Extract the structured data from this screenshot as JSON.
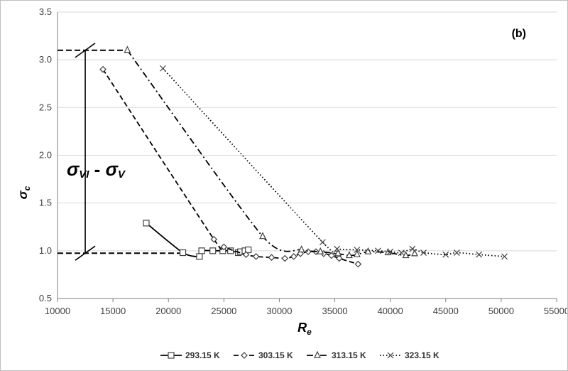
{
  "chart_data": {
    "type": "line",
    "xlabel_main": "R",
    "xlabel_sub": "e",
    "ylabel_main": "σ",
    "ylabel_sub": "c",
    "panel_label": "(b)",
    "annotation": {
      "sym1": "σ",
      "sub1": "VI",
      "dash": " - ",
      "sym2": "σ",
      "sub2": "V",
      "upper_level": 3.1,
      "lower_level": 0.975,
      "bracket_x": 12500,
      "upper_dash_from": 10000,
      "upper_dash_to": 16300,
      "lower_dash_from": 10000,
      "lower_dash_to": 21300
    },
    "xlim": [
      10000,
      55000
    ],
    "ylim": [
      0.5,
      3.5
    ],
    "xticks": [
      10000,
      15000,
      20000,
      25000,
      30000,
      35000,
      40000,
      45000,
      50000,
      55000
    ],
    "yticks": [
      0.5,
      1.0,
      1.5,
      2.0,
      2.5,
      3.0,
      3.5
    ],
    "ytick_labels": [
      "0.5",
      "1.0",
      "1.5",
      "2.0",
      "2.5",
      "3.0",
      "3.5"
    ],
    "grid": "horizontal",
    "legend_position": "bottom",
    "series": [
      {
        "name": "293.15 K",
        "marker": "square",
        "line": "solid",
        "points": [
          [
            18000,
            1.29
          ],
          [
            21300,
            0.98
          ],
          [
            22800,
            0.94
          ],
          [
            23000,
            1.0
          ],
          [
            24000,
            1.0
          ],
          [
            24900,
            1.0
          ],
          [
            25600,
            1.0
          ],
          [
            26300,
            0.98
          ],
          [
            26500,
            0.99
          ],
          [
            26900,
            1.0
          ],
          [
            27200,
            1.01
          ]
        ]
      },
      {
        "name": "303.15 K",
        "marker": "diamond",
        "line": "dash",
        "points": [
          [
            14100,
            2.9
          ],
          [
            24100,
            1.12
          ],
          [
            25000,
            1.04
          ],
          [
            27000,
            0.96
          ],
          [
            27900,
            0.94
          ],
          [
            29300,
            0.93
          ],
          [
            30500,
            0.92
          ],
          [
            31300,
            0.94
          ],
          [
            31900,
            0.97
          ],
          [
            32600,
            0.99
          ],
          [
            33300,
            0.99
          ],
          [
            34000,
            0.97
          ],
          [
            34700,
            0.95
          ],
          [
            35400,
            0.92
          ],
          [
            37100,
            0.86
          ]
        ]
      },
      {
        "name": "313.15 K",
        "marker": "triangle",
        "line": "dashdot",
        "points": [
          [
            16300,
            3.1
          ],
          [
            28500,
            1.15
          ],
          [
            32000,
            1.01
          ],
          [
            33700,
            0.99
          ],
          [
            35300,
            0.97
          ],
          [
            36300,
            0.95
          ],
          [
            37000,
            0.96
          ],
          [
            38000,
            0.99
          ],
          [
            39800,
            0.98
          ],
          [
            41400,
            0.95
          ],
          [
            42200,
            0.97
          ]
        ]
      },
      {
        "name": "323.15 K",
        "marker": "x",
        "line": "dot",
        "points": [
          [
            19500,
            2.91
          ],
          [
            33900,
            1.09
          ],
          [
            35200,
            1.02
          ],
          [
            37000,
            1.01
          ],
          [
            38900,
            1.0
          ],
          [
            40000,
            0.99
          ],
          [
            41000,
            0.98
          ],
          [
            42000,
            1.02
          ],
          [
            43000,
            0.98
          ],
          [
            45000,
            0.96
          ],
          [
            46000,
            0.98
          ],
          [
            48000,
            0.96
          ],
          [
            50300,
            0.94
          ]
        ]
      }
    ]
  }
}
